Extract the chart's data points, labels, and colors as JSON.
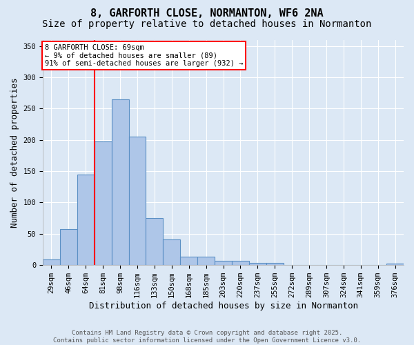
{
  "title": "8, GARFORTH CLOSE, NORMANTON, WF6 2NA",
  "subtitle": "Size of property relative to detached houses in Normanton",
  "xlabel": "Distribution of detached houses by size in Normanton",
  "ylabel": "Number of detached properties",
  "bin_labels": [
    "29sqm",
    "46sqm",
    "64sqm",
    "81sqm",
    "98sqm",
    "116sqm",
    "133sqm",
    "150sqm",
    "168sqm",
    "185sqm",
    "203sqm",
    "220sqm",
    "237sqm",
    "255sqm",
    "272sqm",
    "289sqm",
    "307sqm",
    "324sqm",
    "341sqm",
    "359sqm",
    "376sqm"
  ],
  "bar_heights": [
    9,
    57,
    145,
    198,
    265,
    205,
    75,
    41,
    13,
    13,
    7,
    7,
    3,
    3,
    0,
    0,
    0,
    0,
    0,
    0,
    2
  ],
  "bar_color": "#aec6e8",
  "bar_edge_color": "#5a8fc4",
  "red_line_index": 2,
  "ylim": [
    0,
    360
  ],
  "yticks": [
    0,
    50,
    100,
    150,
    200,
    250,
    300,
    350
  ],
  "annotation_text": "8 GARFORTH CLOSE: 69sqm\n← 9% of detached houses are smaller (89)\n91% of semi-detached houses are larger (932) →",
  "annotation_box_color": "white",
  "annotation_box_edge": "red",
  "footer_line1": "Contains HM Land Registry data © Crown copyright and database right 2025.",
  "footer_line2": "Contains public sector information licensed under the Open Government Licence v3.0.",
  "background_color": "#dce8f5",
  "grid_color": "#ffffff",
  "title_fontsize": 11,
  "subtitle_fontsize": 10,
  "axis_label_fontsize": 9,
  "tick_fontsize": 7.5,
  "footer_fontsize": 6.5
}
